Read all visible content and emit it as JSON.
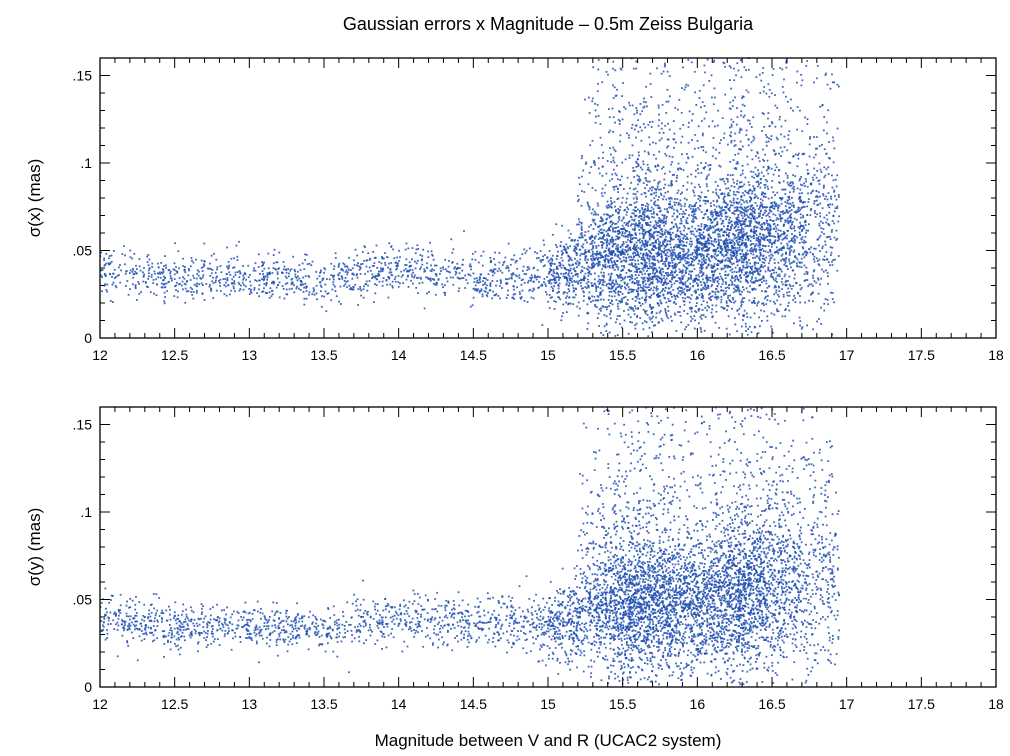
{
  "title": "Gaussian errors x Magnitude – 0.5m Zeiss Bulgaria",
  "xlabel": "Magnitude between V and R (UCAC2 system)",
  "point_color": "#1f4fb0",
  "chart_data": [
    {
      "type": "scatter",
      "title": "Gaussian errors x Magnitude – 0.5m Zeiss Bulgaria",
      "xlabel": "",
      "ylabel": "σ(x) (mas)",
      "xlim": [
        12,
        18
      ],
      "ylim": [
        0,
        0.16
      ],
      "xticks": [
        12,
        12.5,
        13,
        13.5,
        14,
        14.5,
        15,
        15.5,
        16,
        16.5,
        17,
        17.5,
        18
      ],
      "xtick_labels": [
        "12",
        "12.5",
        "13",
        "13.5",
        "14",
        "14.5",
        "15",
        "15.5",
        "16",
        "16.5",
        "17",
        "17.5",
        "18"
      ],
      "yticks": [
        0,
        0.05,
        0.1,
        0.15
      ],
      "ytick_labels": [
        "0",
        ".05",
        ".1",
        ".15"
      ],
      "grid": false,
      "series": [
        {
          "marker": "dot",
          "density_profile": [
            {
              "mag": 12.0,
              "sigma_center": 0.04,
              "sigma_spread": 0.012
            },
            {
              "mag": 12.5,
              "sigma_center": 0.033,
              "sigma_spread": 0.01
            },
            {
              "mag": 13.0,
              "sigma_center": 0.035,
              "sigma_spread": 0.01
            },
            {
              "mag": 13.5,
              "sigma_center": 0.032,
              "sigma_spread": 0.01
            },
            {
              "mag": 14.0,
              "sigma_center": 0.04,
              "sigma_spread": 0.012
            },
            {
              "mag": 14.5,
              "sigma_center": 0.035,
              "sigma_spread": 0.012
            },
            {
              "mag": 15.0,
              "sigma_center": 0.036,
              "sigma_spread": 0.015
            },
            {
              "mag": 15.5,
              "sigma_center": 0.045,
              "sigma_spread": 0.035
            },
            {
              "mag": 16.0,
              "sigma_center": 0.045,
              "sigma_spread": 0.03
            },
            {
              "mag": 16.5,
              "sigma_center": 0.055,
              "sigma_spread": 0.04
            },
            {
              "mag": 16.9,
              "sigma_center": 0.06,
              "sigma_spread": 0.045
            }
          ]
        }
      ]
    },
    {
      "type": "scatter",
      "xlabel": "Magnitude between V and R (UCAC2 system)",
      "ylabel": "σ(y) (mas)",
      "xlim": [
        12,
        18
      ],
      "ylim": [
        0,
        0.16
      ],
      "xticks": [
        12,
        12.5,
        13,
        13.5,
        14,
        14.5,
        15,
        15.5,
        16,
        16.5,
        17,
        17.5,
        18
      ],
      "xtick_labels": [
        "12",
        "12.5",
        "13",
        "13.5",
        "14",
        "14.5",
        "15",
        "15.5",
        "16",
        "16.5",
        "17",
        "17.5",
        "18"
      ],
      "yticks": [
        0,
        0.05,
        0.1,
        0.15
      ],
      "ytick_labels": [
        "0",
        ".05",
        ".1",
        ".15"
      ],
      "grid": false,
      "series": [
        {
          "marker": "dot",
          "density_profile": [
            {
              "mag": 12.0,
              "sigma_center": 0.04,
              "sigma_spread": 0.012
            },
            {
              "mag": 12.5,
              "sigma_center": 0.033,
              "sigma_spread": 0.01
            },
            {
              "mag": 13.0,
              "sigma_center": 0.036,
              "sigma_spread": 0.01
            },
            {
              "mag": 13.5,
              "sigma_center": 0.032,
              "sigma_spread": 0.01
            },
            {
              "mag": 14.0,
              "sigma_center": 0.04,
              "sigma_spread": 0.012
            },
            {
              "mag": 14.5,
              "sigma_center": 0.036,
              "sigma_spread": 0.012
            },
            {
              "mag": 15.0,
              "sigma_center": 0.036,
              "sigma_spread": 0.015
            },
            {
              "mag": 15.5,
              "sigma_center": 0.045,
              "sigma_spread": 0.035
            },
            {
              "mag": 16.0,
              "sigma_center": 0.045,
              "sigma_spread": 0.03
            },
            {
              "mag": 16.5,
              "sigma_center": 0.055,
              "sigma_spread": 0.04
            },
            {
              "mag": 16.9,
              "sigma_center": 0.06,
              "sigma_spread": 0.045
            }
          ]
        }
      ]
    }
  ]
}
